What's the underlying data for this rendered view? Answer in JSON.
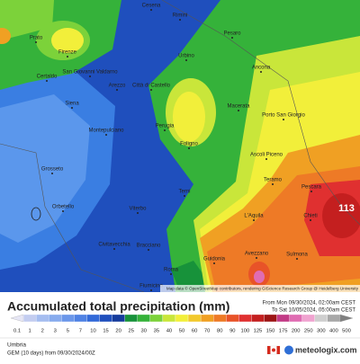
{
  "map": {
    "cities": [
      "Cesena",
      "Rimini",
      "Pesaro",
      "Urbino",
      "Ancona",
      "Prato",
      "Firenze",
      "San Giovanni Valdarno",
      "Arezzo",
      "Certaldo",
      "Siena",
      "Città di Castello",
      "Perugia",
      "Foligno",
      "Macerata",
      "Porto San Giorgio",
      "Montepulciano",
      "Grosseto",
      "Orbetello",
      "Viterbo",
      "Terni",
      "Ascoli Piceno",
      "Teramo",
      "Pescara",
      "Chieti",
      "L'Aquila",
      "Civitavecchia",
      "Bracciano",
      "Roma",
      "Guidonia",
      "Avezzano",
      "Sulmona",
      "Fiumicino"
    ],
    "max_label": "113",
    "attribution": "Map data © OpenStreetMap contributors, rendering GIScience Research Group @ Heidelberg University"
  },
  "panel": {
    "title": "Accumulated total precipitation (mm)",
    "from": "From Mon 09/30/2024, 02:00am CEST",
    "to": "To Sat 10/05/2024, 05:00am CEST",
    "scale": {
      "labels": [
        0.1,
        1,
        2,
        3,
        5,
        7,
        10,
        15,
        20,
        25,
        30,
        35,
        40,
        50,
        60,
        70,
        80,
        90,
        100,
        125,
        150,
        175,
        200,
        250,
        300,
        400,
        500
      ],
      "colors": [
        "#e6e6f5",
        "#c3cdf0",
        "#a5bdf0",
        "#87abee",
        "#6b97ea",
        "#4f82e4",
        "#3269d8",
        "#1f4fbd",
        "#153b9c",
        "#17923a",
        "#35b23a",
        "#7cd23a",
        "#c9e63a",
        "#f2ef3a",
        "#f2c92c",
        "#f0a023",
        "#ee7a26",
        "#e85328",
        "#e03030",
        "#c41f1f",
        "#9c1414",
        "#c23a86",
        "#e06cb2",
        "#f0a3d0",
        "#cfcfcf",
        "#a8a8a8",
        "#808080"
      ]
    },
    "region": "Umbria",
    "model": "GEM (10 days) from 09/30/2024/00Z",
    "brand": "meteologix.com"
  }
}
